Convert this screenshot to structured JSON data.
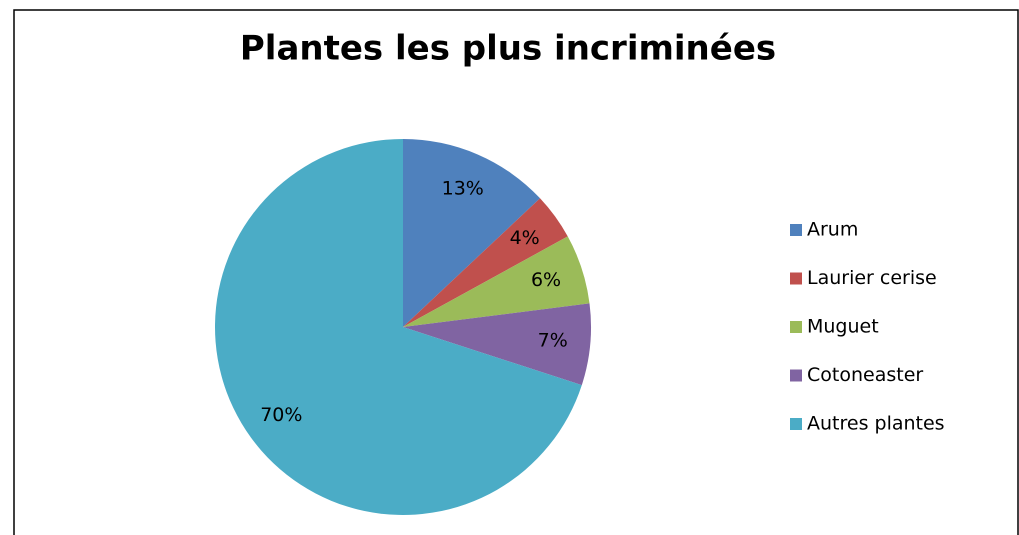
{
  "chart_data": {
    "type": "pie",
    "title": "Plantes les plus incriminées",
    "categories": [
      "Arum",
      "Laurier cerise",
      "Muguet",
      "Cotoneaster",
      "Autres plantes"
    ],
    "values": [
      13,
      4,
      6,
      7,
      70
    ],
    "value_labels": [
      "13%",
      "4%",
      "6%",
      "7%",
      "70%"
    ],
    "colors": [
      "#4f81bd",
      "#c0504d",
      "#9bbb59",
      "#8064a2",
      "#4bacc6"
    ],
    "legend": "right"
  }
}
